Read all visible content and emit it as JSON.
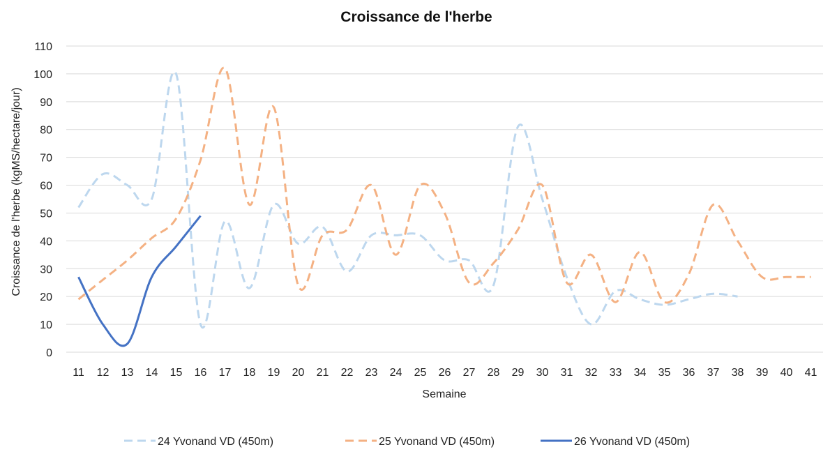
{
  "chart_data": {
    "type": "line",
    "title": "Croissance de l'herbe",
    "xlabel": "Semaine",
    "ylabel": "Croissance de l'herbe (kgMS/hectare/jour)",
    "ylim": [
      0,
      110
    ],
    "yticks": [
      0,
      10,
      20,
      30,
      40,
      50,
      60,
      70,
      80,
      90,
      100,
      110
    ],
    "grid": true,
    "legend_position": "bottom",
    "categories": [
      "11",
      "12",
      "13",
      "14",
      "15",
      "16",
      "17",
      "18",
      "19",
      "20",
      "21",
      "22",
      "23",
      "24",
      "25",
      "26",
      "27",
      "28",
      "29",
      "30",
      "31",
      "32",
      "33",
      "34",
      "35",
      "36",
      "37",
      "38",
      "39",
      "40",
      "41"
    ],
    "series": [
      {
        "name": "24 Yvonand VD (450m)",
        "color": "#bdd7ee",
        "dash": "dashed",
        "x": [
          11,
          12,
          13,
          14,
          15,
          16,
          17,
          18,
          19,
          20,
          21,
          22,
          23,
          24,
          25,
          26,
          27,
          28,
          29,
          30,
          31,
          32,
          33,
          34,
          35,
          36,
          37,
          38
        ],
        "values": [
          52,
          64,
          60,
          55,
          100,
          10,
          47,
          23,
          53,
          39,
          45,
          29,
          42,
          42,
          42,
          33,
          33,
          24,
          81,
          55,
          27,
          10,
          22,
          19,
          17,
          19,
          21,
          20
        ]
      },
      {
        "name": "25 Yvonand VD (450m)",
        "color": "#f4b183",
        "dash": "dashed",
        "x": [
          11,
          12,
          13,
          14,
          15,
          16,
          17,
          18,
          19,
          20,
          21,
          22,
          23,
          24,
          25,
          26,
          27,
          28,
          29,
          30,
          31,
          32,
          33,
          34,
          35,
          36,
          37,
          38,
          39,
          40,
          41
        ],
        "values": [
          19,
          26,
          33,
          41,
          48,
          69,
          102,
          53,
          88,
          24,
          42,
          44,
          60,
          35,
          60,
          50,
          25,
          32,
          44,
          60,
          25,
          35,
          18,
          36,
          18,
          28,
          53,
          40,
          27,
          27,
          27
        ]
      },
      {
        "name": "26 Yvonand VD (450m)",
        "color": "#4472c4",
        "dash": "solid",
        "x": [
          11,
          12,
          13,
          14,
          15,
          16
        ],
        "values": [
          27,
          10,
          3,
          27,
          38,
          49
        ]
      }
    ]
  }
}
